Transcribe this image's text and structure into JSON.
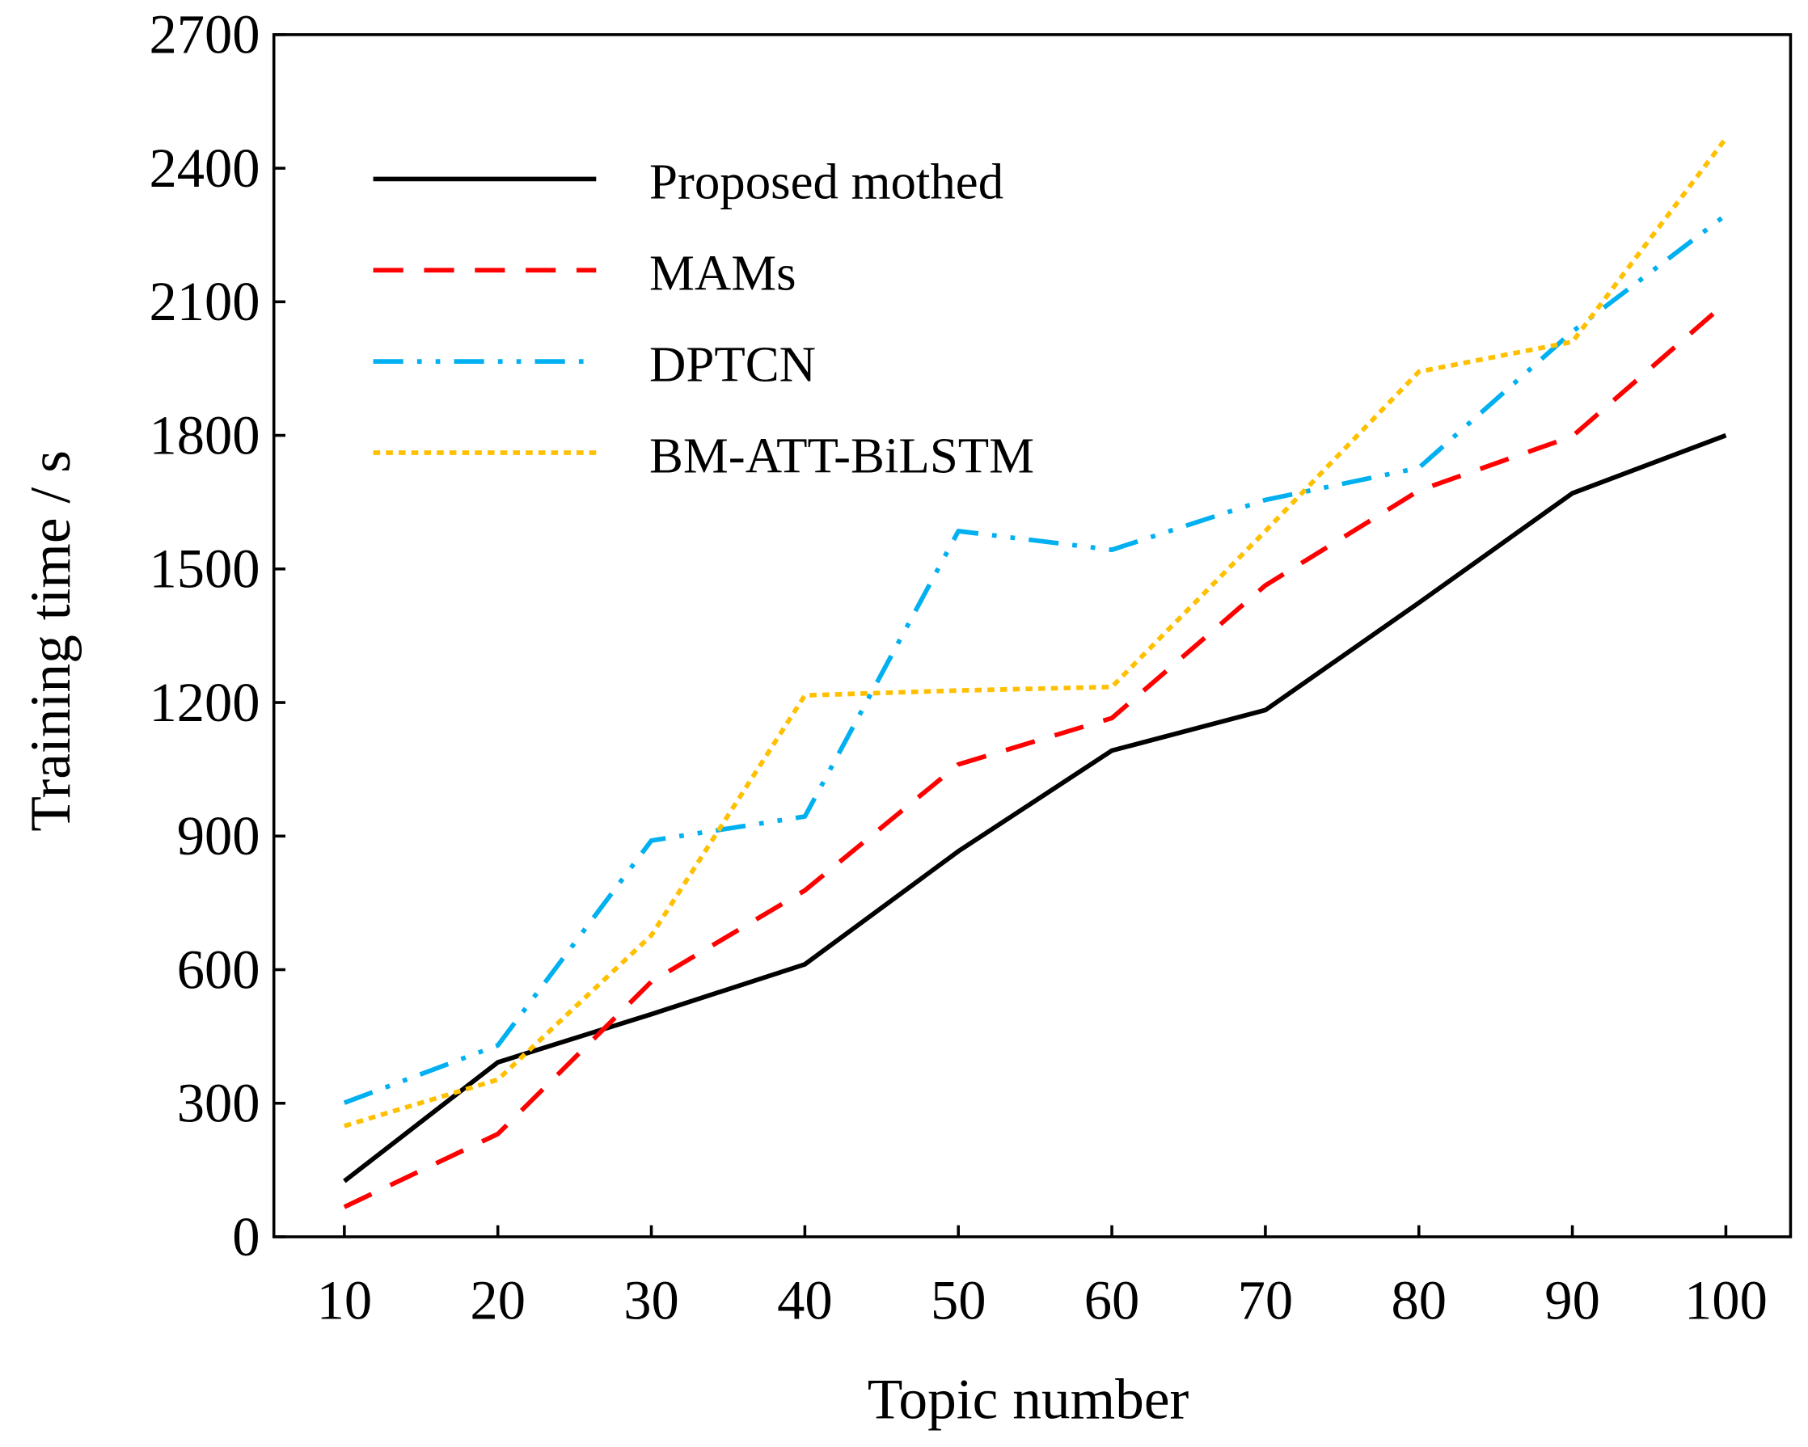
{
  "chart_data": {
    "type": "line",
    "title": "",
    "xlabel": "Topic number",
    "ylabel": "Training time / s",
    "x": [
      10,
      20,
      30,
      40,
      50,
      60,
      70,
      80,
      90,
      100
    ],
    "xticks": [
      "10",
      "20",
      "30",
      "40",
      "50",
      "60",
      "70",
      "80",
      "90",
      "100"
    ],
    "yticks": [
      "0",
      "300",
      "600",
      "900",
      "1200",
      "1500",
      "1800",
      "2100",
      "2400",
      "2700"
    ],
    "ylim": [
      0,
      2700
    ],
    "xlim": [
      5.5,
      104.5
    ],
    "grid": false,
    "legend_position": "top-left",
    "series": [
      {
        "name": "Proposed mothed",
        "color": "#000000",
        "dash": "solid",
        "values": [
          125,
          392,
          500,
          612,
          866,
          1092,
          1183,
          1424,
          1670,
          1800
        ]
      },
      {
        "name": "MAMs",
        "color": "#ff0000",
        "dash": "dash",
        "values": [
          67,
          231,
          573,
          778,
          1061,
          1165,
          1463,
          1676,
          1798,
          2098
        ]
      },
      {
        "name": "DPTCN",
        "color": "#00b0f0",
        "dash": "dash-dot-dot",
        "values": [
          301,
          430,
          890,
          944,
          1585,
          1543,
          1655,
          1727,
          2033,
          2295
        ]
      },
      {
        "name": "BM-ATT-BiLSTM",
        "color": "#ffc000",
        "dash": "dot",
        "values": [
          249,
          353,
          677,
          1216,
          1227,
          1235,
          1585,
          1943,
          2010,
          2467
        ]
      }
    ]
  }
}
